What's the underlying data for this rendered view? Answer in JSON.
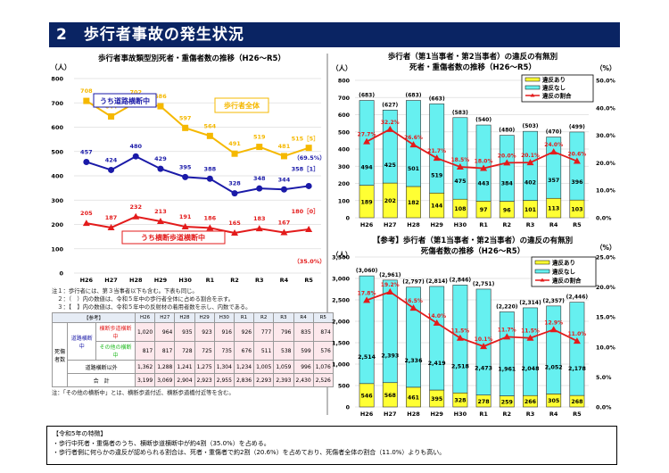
{
  "header": {
    "title": "2　歩行者事故の発生状況"
  },
  "colors": {
    "header_bg": "#0a2463",
    "total": "#f5b800",
    "road": "#1a1aa8",
    "crosswalk": "#e31b1b",
    "violation_yes": "#ffff33",
    "violation_no": "#66f0f0",
    "ratio": "#e31b1b"
  },
  "chart_data": [
    {
      "type": "line",
      "title": "歩行者事故類型別死者・重傷者数の推移（H26〜R5）",
      "ylabel": "（人）",
      "ylim": [
        0,
        800
      ],
      "yticks": [
        "0",
        "100",
        "200",
        "300",
        "400",
        "500",
        "600",
        "700",
        "800"
      ],
      "categories": [
        "H26",
        "H27",
        "H28",
        "H29",
        "H30",
        "R1",
        "R2",
        "R3",
        "R4",
        "R5"
      ],
      "series": [
        {
          "name": "歩行者全体",
          "values": [
            708,
            644,
            702,
            686,
            597,
            564,
            491,
            519,
            481,
            515
          ],
          "labels": [
            "708",
            "644",
            "702",
            "686",
            "597",
            "564",
            "491",
            "519",
            "481",
            "515［5］"
          ],
          "extra": ""
        },
        {
          "name": "うち道路横断中",
          "values": [
            457,
            424,
            480,
            429,
            395,
            388,
            328,
            348,
            344,
            358
          ],
          "labels": [
            "457",
            "424",
            "480",
            "429",
            "395",
            "388",
            "328",
            "348",
            "344",
            "358［1］"
          ],
          "extra": "（69.5%）"
        },
        {
          "name": "うち横断歩道横断中",
          "values": [
            205,
            187,
            232,
            213,
            191,
            186,
            165,
            183,
            167,
            180
          ],
          "labels": [
            "205",
            "187",
            "232",
            "213",
            "191",
            "186",
            "165",
            "183",
            "167",
            "180［0］"
          ],
          "extra": "（35.0%）"
        }
      ]
    },
    {
      "type": "bar",
      "stacked": true,
      "title": "歩行者（第1当事者・第2当事者）の違反の有無別",
      "subtitle": "死者・重傷者数の推移（H26〜R5）",
      "ylabel": "（人）",
      "y2label": "（%）",
      "ylim": [
        0,
        800
      ],
      "y2lim": [
        0,
        50
      ],
      "yticks": [
        "0",
        "100",
        "200",
        "300",
        "400",
        "500",
        "600",
        "700",
        "800"
      ],
      "y2ticks": [
        "0.0%",
        "10.0%",
        "20.0%",
        "30.0%",
        "40.0%",
        "50.0%"
      ],
      "categories": [
        "H26",
        "H27",
        "H28",
        "H29",
        "H30",
        "R1",
        "R2",
        "R3",
        "R4",
        "R5"
      ],
      "legend": [
        "違反あり",
        "違反なし",
        "違反の割合"
      ],
      "violation_yes": [
        189,
        202,
        182,
        144,
        108,
        97,
        96,
        101,
        113,
        103
      ],
      "violation_no": [
        494,
        425,
        501,
        519,
        475,
        443,
        384,
        402,
        357,
        396
      ],
      "totals": [
        "(683)",
        "(627)",
        "(683)",
        "(663)",
        "(583)",
        "(540)",
        "(480)",
        "(503)",
        "(470)",
        "(499)"
      ],
      "ratio": [
        27.7,
        32.2,
        26.6,
        21.7,
        18.5,
        18.0,
        20.0,
        20.1,
        24.0,
        20.6
      ],
      "ratio_labels": [
        "27.7%",
        "32.2%",
        "26.6%",
        "21.7%",
        "18.5%",
        "18.0%",
        "20.0%",
        "20.1%",
        "24.0%",
        "20.6%"
      ]
    },
    {
      "type": "bar",
      "stacked": true,
      "title": "【参考】歩行者（第1当事者・第2当事者）の違反の有無別",
      "subtitle": "死傷者数の推移（H26〜R5）",
      "ylabel": "（人）",
      "y2label": "（%）",
      "ylim": [
        0,
        3500
      ],
      "y2lim": [
        0,
        25
      ],
      "yticks": [
        "0",
        "500",
        "1,000",
        "1,500",
        "2,000",
        "2,500",
        "3,000",
        "3,500"
      ],
      "y2ticks": [
        "0.0%",
        "5.0%",
        "10.0%",
        "15.0%",
        "20.0%",
        "25.0%"
      ],
      "categories": [
        "H26",
        "H27",
        "H28",
        "H29",
        "H30",
        "R1",
        "R2",
        "R3",
        "R4",
        "R5"
      ],
      "legend": [
        "違反あり",
        "違反なし",
        "違反の割合"
      ],
      "violation_yes": [
        546,
        568,
        461,
        395,
        328,
        278,
        259,
        266,
        305,
        268
      ],
      "violation_no": [
        2514,
        2393,
        2336,
        2419,
        2518,
        2473,
        1961,
        2048,
        2052,
        2178
      ],
      "yes_labels": [
        "546",
        "568",
        "461",
        "395",
        "328",
        "278",
        "259",
        "266",
        "305",
        "268"
      ],
      "no_labels": [
        "2,514",
        "2,393",
        "2,336",
        "2,419",
        "2,518",
        "2,473",
        "1,961",
        "2,048",
        "2,052",
        "2,178"
      ],
      "totals": [
        "(3,060)",
        "(2,961)",
        "(2,797)",
        "(2,814)",
        "(2,846)",
        "(2,751)",
        "(2,220)",
        "(2,314)",
        "(2,357)",
        "(2,446)"
      ],
      "ratio": [
        17.8,
        19.2,
        16.5,
        14.0,
        11.5,
        10.1,
        11.7,
        11.5,
        12.9,
        11.0
      ],
      "ratio_labels": [
        "17.8%",
        "19.2%",
        "16.5%",
        "14.0%",
        "11.5%",
        "10.1%",
        "11.7%",
        "11.5%",
        "12.9%",
        "11.0%"
      ]
    },
    {
      "type": "table",
      "title": "【参考】",
      "columns": [
        "H26",
        "H27",
        "H28",
        "H29",
        "H30",
        "R1",
        "R2",
        "R3",
        "R4",
        "R5"
      ],
      "group_label": "死傷者数",
      "subgroup_label": "道路横断中",
      "rows": [
        {
          "label": "横断歩道横断中",
          "values": [
            "1,020",
            "964",
            "935",
            "923",
            "916",
            "926",
            "777",
            "796",
            "835",
            "874"
          ]
        },
        {
          "label": "その他の横断中",
          "values": [
            "817",
            "817",
            "728",
            "725",
            "735",
            "676",
            "511",
            "538",
            "599",
            "576"
          ]
        },
        {
          "label": "道路横断以外",
          "values": [
            "1,362",
            "1,288",
            "1,241",
            "1,275",
            "1,304",
            "1,234",
            "1,005",
            "1,059",
            "996",
            "1,076"
          ]
        },
        {
          "label": "合　計",
          "values": [
            "3,199",
            "3,069",
            "2,904",
            "2,923",
            "2,955",
            "2,836",
            "2,293",
            "2,393",
            "2,430",
            "2,526"
          ]
        }
      ]
    }
  ],
  "notes": [
    "注１：歩行者には、第３当事者以下も含む。下表も同じ。",
    "　２：（　）内の数値は、令和５年中の歩行者全体に占める割合を示す。",
    "　３：【　】内の数値は、令和５年中の反射材の着用者数を示し、内数である。"
  ],
  "table_note": "注：「その他の横断中」とは、横断歩道付近、横断歩道橋付近等を含む。",
  "summary": {
    "heading": "【令和5年の特徴】",
    "lines": [
      "・歩行中死者・重傷者のうち、横断歩道横断中が約4割（35.0%）を占める。",
      "・歩行者側に何らかの違反が認められる割合は、死者・重傷者で約2割（20.6%）を占めており、死傷者全体の割合（11.0%）よりも高い。"
    ]
  }
}
